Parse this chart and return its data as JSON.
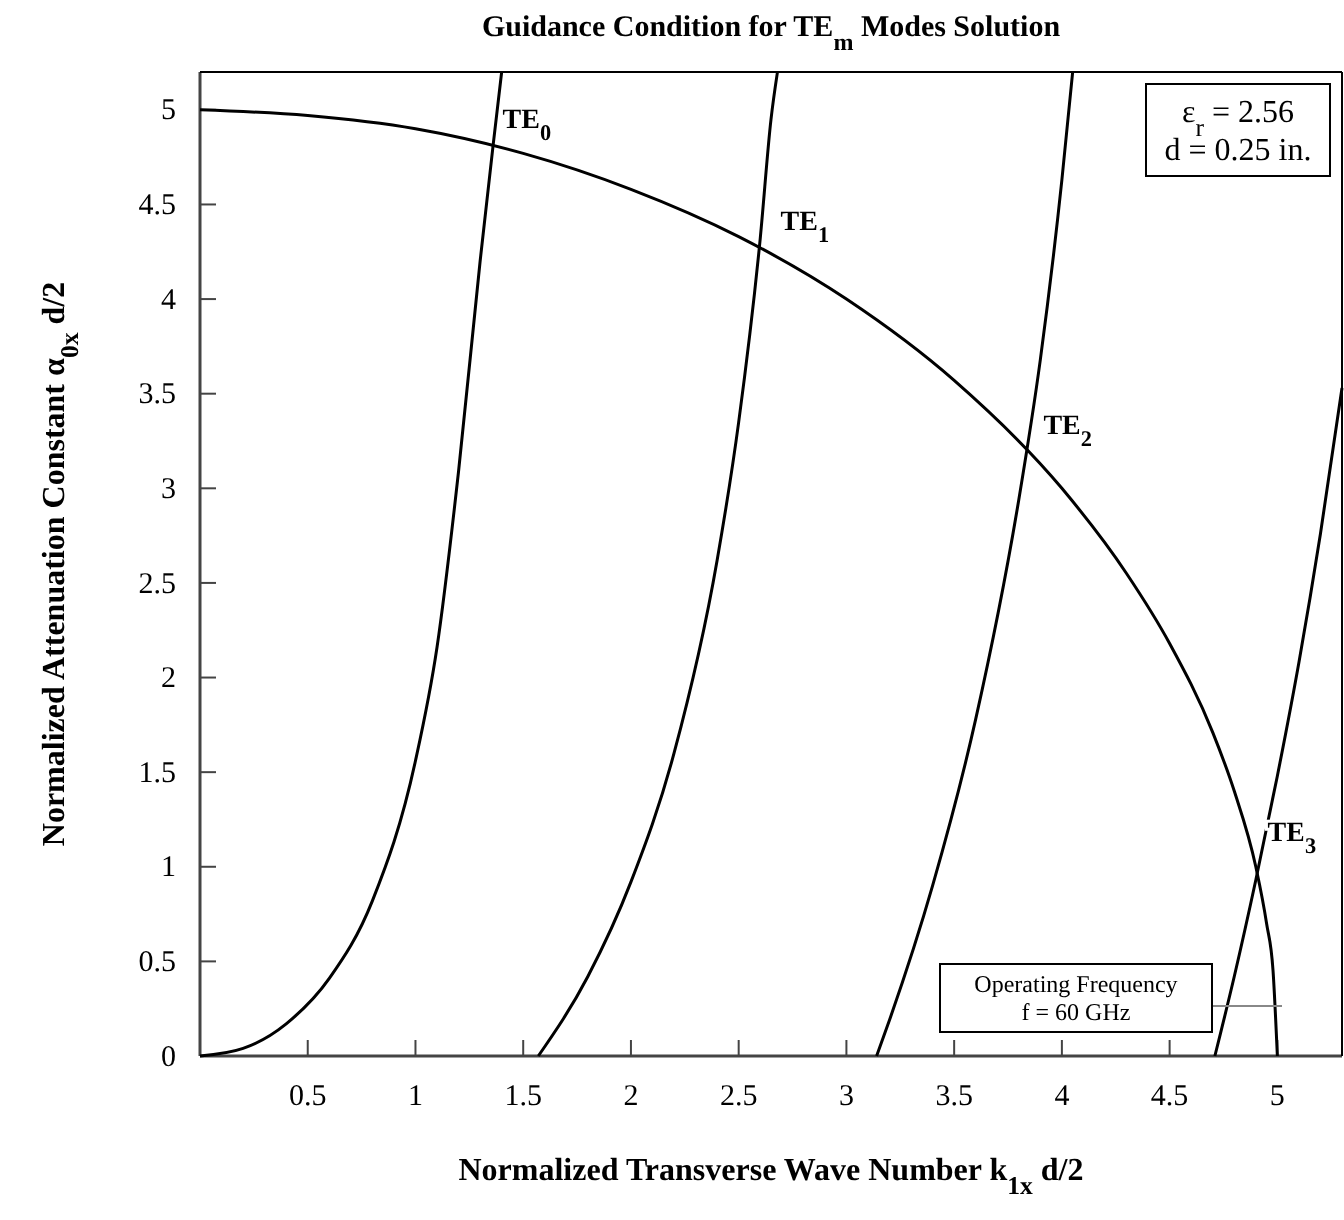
{
  "chart_data": {
    "type": "line",
    "title": "Guidance Condition for TE$_{m}$ Modes Solution",
    "xlabel": "Normalized Transverse Wave Number k$_{1x}$ d/2",
    "ylabel": "Normalized Attenuation Constant α$_{0x}$ d/2",
    "xlim": [
      0,
      5.3
    ],
    "ylim": [
      0,
      5.2
    ],
    "xticks": [
      0.5,
      1,
      1.5,
      2,
      2.5,
      3,
      3.5,
      4,
      4.5,
      5
    ],
    "yticks": [
      0,
      0.5,
      1,
      1.5,
      2,
      2.5,
      3,
      3.5,
      4,
      4.5,
      5
    ],
    "grid": false,
    "marker": "none",
    "line_style": "solid",
    "series": [
      {
        "color": "#000000",
        "x": [
          0,
          0.5,
          1,
          1.5,
          2,
          2.5,
          3,
          3.5,
          4,
          4.3,
          4.5,
          4.7,
          4.8,
          4.9,
          4.95,
          4.98,
          5.0
        ],
        "values": [
          5.0,
          4.97,
          4.9,
          4.77,
          4.58,
          4.33,
          4.0,
          3.57,
          3.0,
          2.55,
          2.18,
          1.71,
          1.4,
          1.0,
          0.7,
          0.45,
          0
        ]
      },
      {
        "color": "#000000",
        "x": [
          0,
          0.2,
          0.4,
          0.6,
          0.8,
          1.0,
          1.1,
          1.2,
          1.3,
          1.36,
          1.4
        ],
        "values": [
          0,
          0.04,
          0.17,
          0.41,
          0.82,
          1.56,
          2.16,
          3.09,
          4.2,
          4.81,
          5.2
        ]
      },
      {
        "color": "#000000",
        "x": [
          1.57,
          1.8,
          2.0,
          2.2,
          2.4,
          2.5,
          2.6,
          2.65,
          2.68
        ],
        "values": [
          0,
          0.42,
          0.92,
          1.6,
          2.62,
          3.35,
          4.32,
          4.95,
          5.2
        ]
      },
      {
        "color": "#000000",
        "x": [
          3.14,
          3.2,
          3.4,
          3.6,
          3.8,
          3.9,
          4.0,
          4.05
        ],
        "values": [
          0,
          0.19,
          0.9,
          1.78,
          2.94,
          3.68,
          4.63,
          5.2
        ]
      },
      {
        "color": "#000000",
        "x": [
          4.71,
          4.8,
          4.9,
          5.0,
          5.1,
          5.2,
          5.3
        ],
        "values": [
          0,
          0.42,
          0.93,
          1.48,
          2.08,
          2.76,
          3.53
        ]
      }
    ],
    "annotations": [
      {
        "text": "TE$_{0}$",
        "x": 1.33,
        "y": 4.82
      },
      {
        "text": "TE$_{1}$",
        "x": 2.62,
        "y": 4.28
      },
      {
        "text": "TE$_{2}$",
        "x": 3.84,
        "y": 3.2
      },
      {
        "text": "TE$_{3}$",
        "x": 4.88,
        "y": 1.05
      },
      "ε$_{r}$ = 2.56\nd  = 0.25 in.",
      "Operating Frequency\nf = 60 GHz"
    ]
  }
}
